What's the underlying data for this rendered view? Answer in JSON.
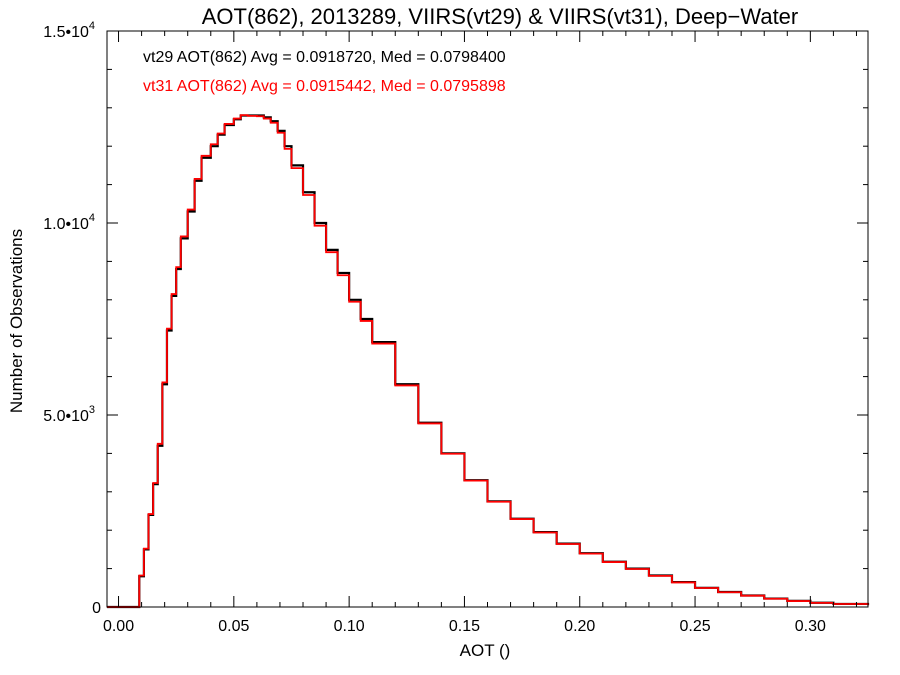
{
  "chart_data": {
    "type": "line",
    "title": "AOT(862), 2013289, VIIRS(vt29) & VIIRS(vt31), Deep−Water",
    "xlabel": "AOT ()",
    "ylabel": "Number of Observations",
    "xlim": [
      -0.005,
      0.325
    ],
    "ylim": [
      0,
      15000
    ],
    "grid": false,
    "step": true,
    "x_ticks": [
      {
        "value": 0.0,
        "label": "0.00"
      },
      {
        "value": 0.05,
        "label": "0.05"
      },
      {
        "value": 0.1,
        "label": "0.10"
      },
      {
        "value": 0.15,
        "label": "0.15"
      },
      {
        "value": 0.2,
        "label": "0.20"
      },
      {
        "value": 0.25,
        "label": "0.25"
      },
      {
        "value": 0.3,
        "label": "0.30"
      }
    ],
    "y_ticks": [
      {
        "value": 0,
        "mantissa": "0",
        "exponent": ""
      },
      {
        "value": 5000,
        "mantissa": "5.0•10",
        "exponent": "3"
      },
      {
        "value": 10000,
        "mantissa": "1.0•10",
        "exponent": "4"
      },
      {
        "value": 15000,
        "mantissa": "1.5•10",
        "exponent": "4"
      }
    ],
    "annotations": [
      {
        "text": "vt29 AOT(862) Avg = 0.0918720, Med = 0.0798400",
        "color": "#000000"
      },
      {
        "text": "vt31 AOT(862) Avg = 0.0915442, Med = 0.0795898",
        "color": "#ff0000"
      }
    ],
    "series": [
      {
        "color": "#000000",
        "x": [
          -0.005,
          0.007,
          0.009,
          0.011,
          0.013,
          0.015,
          0.017,
          0.019,
          0.021,
          0.023,
          0.025,
          0.027,
          0.03,
          0.033,
          0.036,
          0.04,
          0.043,
          0.046,
          0.05,
          0.053,
          0.056,
          0.06,
          0.063,
          0.066,
          0.069,
          0.072,
          0.075,
          0.08,
          0.085,
          0.09,
          0.095,
          0.1,
          0.105,
          0.11,
          0.12,
          0.13,
          0.14,
          0.15,
          0.16,
          0.17,
          0.18,
          0.19,
          0.2,
          0.21,
          0.22,
          0.23,
          0.24,
          0.25,
          0.26,
          0.27,
          0.28,
          0.29,
          0.3,
          0.31,
          0.325
        ],
        "y": [
          0,
          0,
          800,
          1500,
          2400,
          3200,
          4200,
          5800,
          7200,
          8100,
          8800,
          9600,
          10300,
          11100,
          11700,
          12000,
          12300,
          12550,
          12700,
          12800,
          12800,
          12800,
          12750,
          12650,
          12400,
          12000,
          11500,
          10800,
          10000,
          9300,
          8700,
          8000,
          7500,
          6900,
          5800,
          4800,
          4000,
          3300,
          2750,
          2300,
          1950,
          1650,
          1400,
          1180,
          1000,
          820,
          650,
          500,
          390,
          300,
          220,
          160,
          110,
          80,
          50
        ]
      },
      {
        "color": "#ff0000",
        "x": [
          -0.005,
          0.007,
          0.009,
          0.011,
          0.013,
          0.015,
          0.017,
          0.019,
          0.021,
          0.023,
          0.025,
          0.027,
          0.03,
          0.033,
          0.036,
          0.04,
          0.043,
          0.046,
          0.05,
          0.053,
          0.056,
          0.06,
          0.063,
          0.066,
          0.069,
          0.072,
          0.075,
          0.08,
          0.085,
          0.09,
          0.095,
          0.1,
          0.105,
          0.11,
          0.12,
          0.13,
          0.14,
          0.15,
          0.16,
          0.17,
          0.18,
          0.19,
          0.2,
          0.21,
          0.22,
          0.23,
          0.24,
          0.25,
          0.26,
          0.27,
          0.28,
          0.29,
          0.3,
          0.31,
          0.325
        ],
        "y": [
          0,
          0,
          820,
          1520,
          2420,
          3230,
          4250,
          5850,
          7250,
          8150,
          8850,
          9650,
          10350,
          11150,
          11750,
          12050,
          12330,
          12580,
          12720,
          12810,
          12790,
          12780,
          12720,
          12610,
          12350,
          11930,
          11430,
          10730,
          9930,
          9240,
          8640,
          7950,
          7450,
          6860,
          5770,
          4780,
          3990,
          3290,
          2740,
          2290,
          1940,
          1640,
          1390,
          1170,
          990,
          810,
          640,
          495,
          385,
          295,
          215,
          155,
          108,
          78,
          48
        ]
      }
    ]
  }
}
